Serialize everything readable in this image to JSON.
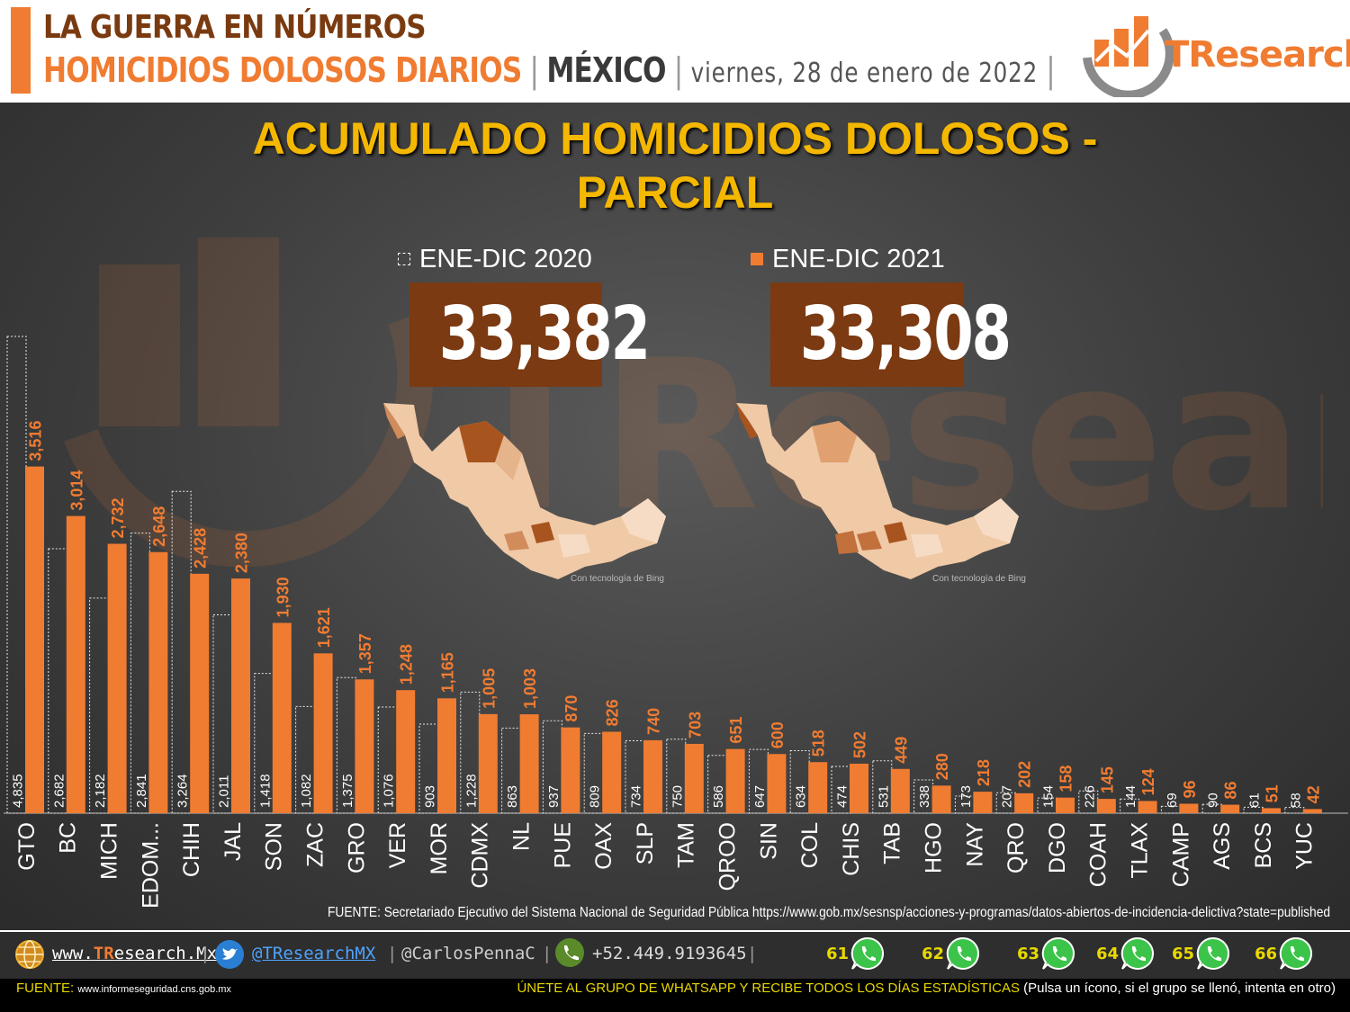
{
  "header": {
    "line1": "LA GUERRA EN NÚMEROS",
    "subtitle": "HOMICIDIOS DOLOSOS DIARIOS",
    "separator": "|",
    "country": "MÉXICO",
    "date": "viernes, 28 de enero de 2022",
    "logo_text": "TResearch"
  },
  "panel": {
    "title_line1": "ACUMULADO HOMICIDIOS DOLOSOS -",
    "title_line2": "PARCIAL",
    "map_credit": "Con tecnología de Bing"
  },
  "chart_data": {
    "type": "bar",
    "title": "ACUMULADO HOMICIDIOS DOLOSOS - PARCIAL",
    "categories": [
      "GTO",
      "BC",
      "MICH",
      "EDOM...",
      "CHIH",
      "JAL",
      "SON",
      "ZAC",
      "GRO",
      "VER",
      "MOR",
      "CDMX",
      "NL",
      "PUE",
      "OAX",
      "SLP",
      "TAM",
      "QROO",
      "SIN",
      "COL",
      "CHIS",
      "TAB",
      "HGO",
      "NAY",
      "QRO",
      "DGO",
      "COAH",
      "TLAX",
      "CAMP",
      "AGS",
      "BCS",
      "YUC"
    ],
    "series": [
      {
        "name": "ENE-DIC 2020",
        "total": "33,382",
        "color": "#ffffff",
        "labels": [
          "4,835",
          "2,682",
          "2,182",
          "2,841",
          "3,264",
          "2,011",
          "1,418",
          "1,082",
          "1,375",
          "1,076",
          "903",
          "1,228",
          "863",
          "937",
          "809",
          "734",
          "750",
          "586",
          "647",
          "634",
          "474",
          "531",
          "338",
          "173",
          "207",
          "154",
          "226",
          "144",
          "69",
          "90",
          "61",
          "58"
        ],
        "values": [
          4835,
          2682,
          2182,
          2841,
          3264,
          2011,
          1418,
          1082,
          1375,
          1076,
          903,
          1228,
          863,
          937,
          809,
          734,
          750,
          586,
          647,
          634,
          474,
          531,
          338,
          173,
          207,
          154,
          226,
          144,
          69,
          90,
          61,
          58
        ]
      },
      {
        "name": "ENE-DIC 2021",
        "total": "33,308",
        "color": "#f07c32",
        "labels": [
          "3,516",
          "3,014",
          "2,732",
          "2,648",
          "2,428",
          "2,380",
          "1,930",
          "1,621",
          "1,357",
          "1,248",
          "1,165",
          "1,005",
          "1,003",
          "870",
          "826",
          "740",
          "703",
          "651",
          "600",
          "518",
          "502",
          "449",
          "280",
          "218",
          "202",
          "158",
          "145",
          "124",
          "96",
          "86",
          "51",
          "42"
        ],
        "values": [
          3516,
          3014,
          2732,
          2648,
          2428,
          2380,
          1930,
          1621,
          1357,
          1248,
          1165,
          1005,
          1003,
          870,
          826,
          740,
          703,
          651,
          600,
          518,
          502,
          449,
          280,
          218,
          202,
          158,
          145,
          124,
          96,
          86,
          51,
          42
        ]
      }
    ],
    "ylim": [
      0,
      4835
    ],
    "grid": false,
    "legend": "top-center"
  },
  "source": "FUENTE: Secretariado Ejecutivo del Sistema Nacional de Seguridad Pública https://www.gob.mx/sesnsp/acciones-y-programas/datos-abiertos-de-incidencia-delictiva?state=published",
  "footer": {
    "website": "www.TResearch.Mx",
    "website_prefix": "www.",
    "website_brand": "TR",
    "website_rest": "esearch.Mx",
    "twitter": "@TResearchMX",
    "twitter2": "@CarlosPennaC",
    "phone": "+52.449.9193645",
    "sep": "|",
    "whatsapp_groups": [
      "61",
      "62",
      "63",
      "64",
      "65",
      "66"
    ],
    "source_label": "FUENTE:",
    "source_url": "www.informeseguridad.cns.gob.mx",
    "join_text": "ÚNETE AL GRUPO DE WHATSAPP Y RECIBE TODOS LOS DÍAS ESTADÍSTICAS",
    "join_note": "(Pulsa un ícono, si el grupo se llenó, intenta en otro)"
  }
}
